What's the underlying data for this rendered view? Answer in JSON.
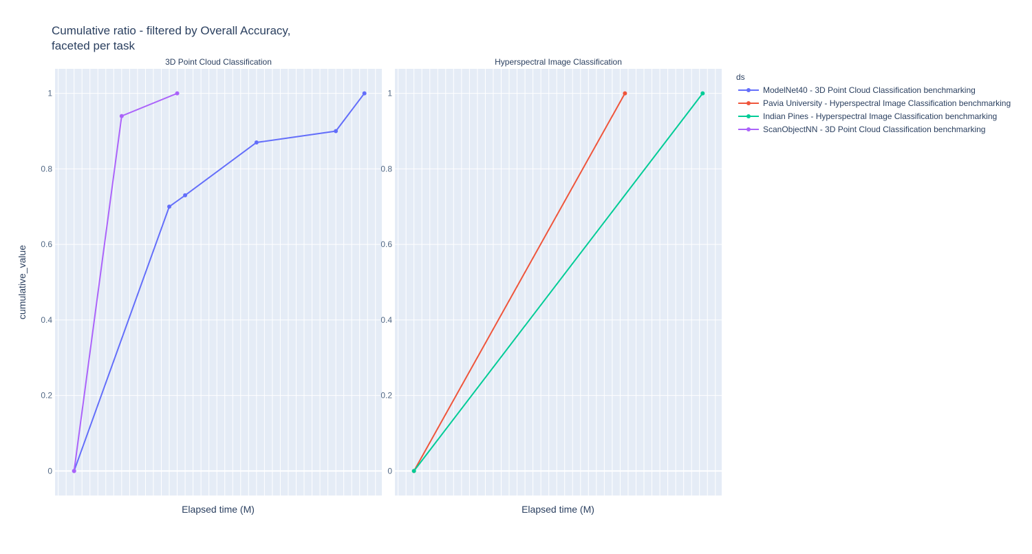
{
  "chart_data": {
    "type": "line",
    "title_line1": "Cumulative ratio - filtered by Overall Accuracy,",
    "title_line2": "faceted per task",
    "ylabel": "cumulative_value",
    "xlabel": "Elapsed time (M)",
    "ylim": [
      -0.065,
      1.065
    ],
    "yticks": [
      "0",
      "0.2",
      "0.4",
      "0.6",
      "0.8",
      "1"
    ],
    "ytick_values": [
      0,
      0.2,
      0.4,
      0.6,
      0.8,
      1
    ],
    "grid": true,
    "legend": {
      "title": "ds",
      "placement": "top-right"
    },
    "colors": {
      "plot_bg": "#e5ecf6",
      "grid": "#ffffff",
      "ModelNet40": "#636efa",
      "Pavia": "#ef553b",
      "Indian": "#00cc96",
      "ScanObjectNN": "#ab63fa"
    },
    "facets": [
      {
        "name": "3D Point Cloud Classification",
        "xlim": [
          -1.2,
          19.4
        ],
        "series": [
          {
            "name": "ModelNet40 - 3D Point Cloud Classification benchmarking",
            "color": "#636efa",
            "x": [
              0,
              6,
              7,
              11.5,
              16.5,
              18.3
            ],
            "y": [
              0,
              0.7,
              0.73,
              0.87,
              0.9,
              1.0
            ]
          },
          {
            "name": "ScanObjectNN - 3D Point Cloud Classification benchmarking",
            "color": "#ab63fa",
            "x": [
              0,
              3,
              6.5
            ],
            "y": [
              0,
              0.94,
              1.0
            ]
          }
        ]
      },
      {
        "name": "Hyperspectral Image Classification",
        "xlim": [
          -1.2,
          19.4
        ],
        "series": [
          {
            "name": "Pavia University - Hyperspectral Image Classification benchmarking",
            "color": "#ef553b",
            "x": [
              0,
              13.3
            ],
            "y": [
              0,
              1.0
            ]
          },
          {
            "name": "Indian Pines - Hyperspectral Image Classification benchmarking",
            "color": "#00cc96",
            "x": [
              0,
              18.2
            ],
            "y": [
              0,
              1.0
            ]
          }
        ]
      }
    ],
    "legend_entries": [
      {
        "label": "ModelNet40 - 3D Point Cloud Classification benchmarking",
        "color": "#636efa"
      },
      {
        "label": "Pavia University - Hyperspectral Image Classification benchmarking",
        "color": "#ef553b"
      },
      {
        "label": "Indian Pines - Hyperspectral Image Classification benchmarking",
        "color": "#00cc96"
      },
      {
        "label": "ScanObjectNN - 3D Point Cloud Classification benchmarking",
        "color": "#ab63fa"
      }
    ]
  }
}
